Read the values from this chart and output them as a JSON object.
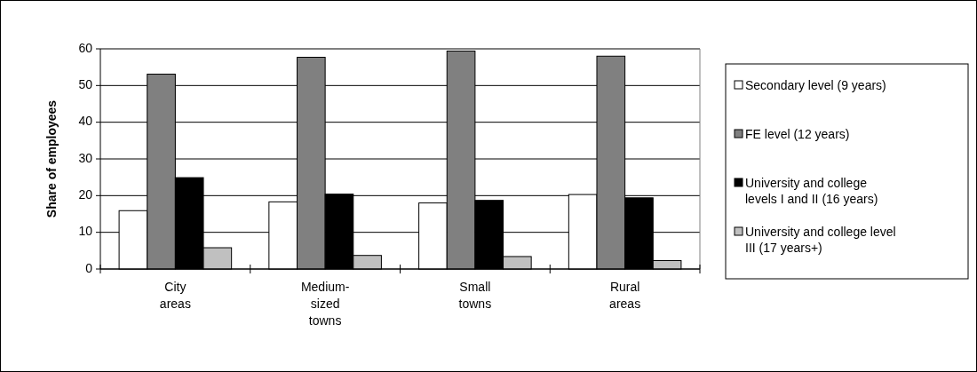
{
  "chart_data": {
    "type": "bar",
    "ylabel": "Share of employees",
    "categories": [
      "City areas",
      "Medium-sized towns",
      "Small towns",
      "Rural areas"
    ],
    "series": [
      {
        "name": "Secondary level (9 years)",
        "color": "#ffffff",
        "values": [
          15.9,
          18.3,
          18,
          20.3
        ]
      },
      {
        "name": "FE level (12 years)",
        "color": "#808080",
        "values": [
          53.1,
          57.7,
          59.4,
          58
        ]
      },
      {
        "name": "University and college levels I and II (16 years)",
        "color": "#000000",
        "values": [
          24.9,
          20.4,
          18.7,
          19.4
        ]
      },
      {
        "name": "University and college level III (17 years+)",
        "color": "#c0c0c0",
        "values": [
          5.8,
          3.7,
          3.4,
          2.3
        ]
      }
    ],
    "ylim": [
      0,
      60
    ],
    "yticks": [
      0,
      10,
      20,
      30,
      40,
      50,
      60
    ],
    "grid": "y",
    "legend": "right"
  }
}
